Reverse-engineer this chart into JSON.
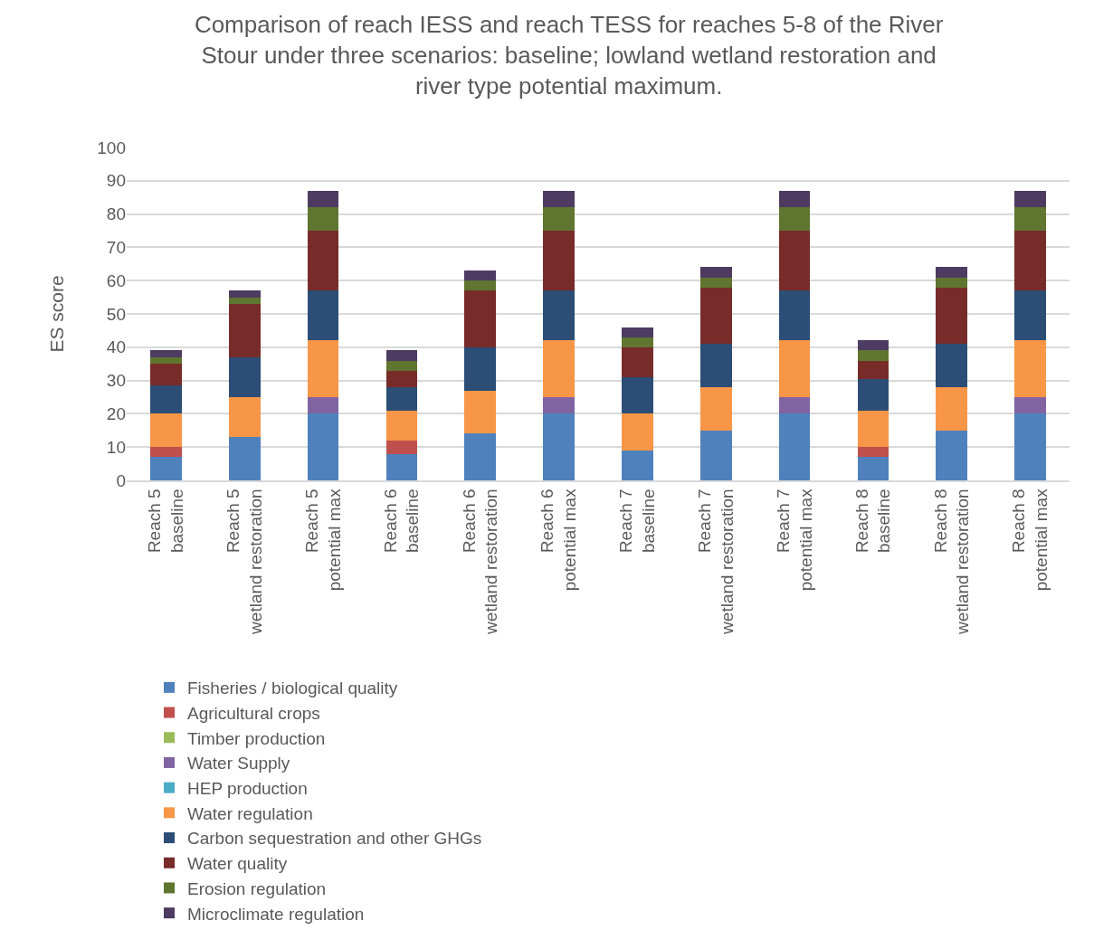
{
  "chart_data": {
    "type": "bar",
    "stacked": true,
    "title": "Comparison of reach IESS and reach TESS for reaches 5-8 of the River Stour under three scenarios: baseline; lowland wetland restoration and river type potential maximum.",
    "ylabel": "ES score",
    "categories": [
      "Reach 5 baseline",
      "Reach 5 wetland restoration",
      "Reach 5 potential max",
      "Reach 6 baseline",
      "Reach 6 wetland restoration",
      "Reach 6 potential max",
      "Reach 7 baseline",
      "Reach 7 wetland restoration",
      "Reach 7 potential max",
      "Reach 8 baseline",
      "Reach 8 wetland restoration",
      "Reach 8 potential max"
    ],
    "series": [
      {
        "name": "Fisheries / biological quality",
        "color": "#4f81bd",
        "values": [
          7,
          13,
          20,
          8,
          14,
          20,
          9,
          15,
          20,
          7,
          15,
          20
        ]
      },
      {
        "name": "Agricultural crops",
        "color": "#c0504d",
        "values": [
          3,
          0,
          0,
          4,
          0,
          0,
          0,
          0,
          0,
          3,
          0,
          0
        ]
      },
      {
        "name": "Timber production",
        "color": "#9bbb59",
        "values": [
          0,
          0,
          0,
          0,
          0,
          0,
          0,
          0,
          0,
          0,
          0,
          0
        ]
      },
      {
        "name": "Water Supply",
        "color": "#8064a2",
        "values": [
          0,
          0,
          5,
          0,
          0,
          5,
          0,
          0,
          5,
          0,
          0,
          5
        ]
      },
      {
        "name": "HEP production",
        "color": "#4bacc6",
        "values": [
          0,
          0,
          0,
          0,
          0,
          0,
          0,
          0,
          0,
          0,
          0,
          0
        ]
      },
      {
        "name": "Water regulation",
        "color": "#f79646",
        "values": [
          10,
          12,
          17,
          9,
          13,
          17,
          11,
          13,
          17,
          11,
          13,
          17
        ]
      },
      {
        "name": "Carbon sequestration and other GHGs",
        "color": "#2c4d75",
        "values": [
          8.5,
          12,
          15,
          7,
          13,
          15,
          11,
          13,
          15,
          9.5,
          13,
          15
        ]
      },
      {
        "name": "Water quality",
        "color": "#772c2a",
        "values": [
          6.5,
          16,
          18,
          5,
          17,
          18,
          9,
          17,
          18,
          5.5,
          17,
          18
        ]
      },
      {
        "name": "Erosion regulation",
        "color": "#5f7530",
        "values": [
          2,
          2,
          7,
          3,
          3,
          7,
          3,
          3,
          7,
          3,
          3,
          7
        ]
      },
      {
        "name": "Microclimate regulation",
        "color": "#4d3b62",
        "values": [
          2,
          2,
          5,
          3,
          3,
          5,
          3,
          3,
          5,
          3,
          3,
          5
        ]
      }
    ],
    "ylim": [
      0,
      100
    ],
    "yticks": [
      0,
      10,
      20,
      30,
      40,
      50,
      60,
      70,
      80,
      90,
      100
    ],
    "grid": "y",
    "legend": "bottom"
  }
}
